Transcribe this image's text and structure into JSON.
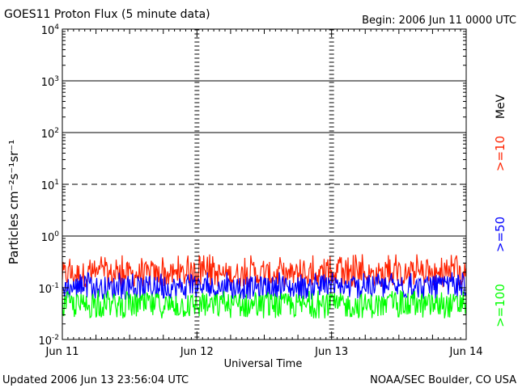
{
  "chart_data": {
    "type": "line",
    "title": "GOES11 Proton Flux (5 minute data)",
    "begin_label": "Begin: 2006 Jun 11 0000 UTC",
    "xlabel": "Universal Time",
    "ylabel": "Particles cm⁻²s⁻¹sr⁻¹",
    "y_scale": "log",
    "ylim": [
      0.01,
      10000
    ],
    "y_ticks": [
      {
        "value": 10000,
        "base": "10",
        "exp": "4"
      },
      {
        "value": 1000,
        "base": "10",
        "exp": "3"
      },
      {
        "value": 100,
        "base": "10",
        "exp": "2"
      },
      {
        "value": 10,
        "base": "10",
        "exp": "1"
      },
      {
        "value": 1,
        "base": "10",
        "exp": "0"
      },
      {
        "value": 0.1,
        "base": "10",
        "exp": "-1"
      },
      {
        "value": 0.01,
        "base": "10",
        "exp": "-2"
      }
    ],
    "x_range_hours": [
      0,
      72
    ],
    "x_ticks": [
      {
        "hour": 0,
        "label": "Jun 11"
      },
      {
        "hour": 24,
        "label": "Jun 12"
      },
      {
        "hour": 48,
        "label": "Jun 13"
      },
      {
        "hour": 72,
        "label": "Jun 14"
      }
    ],
    "threshold_lines": [
      {
        "value": 1000,
        "style": "solid"
      },
      {
        "value": 100,
        "style": "solid"
      },
      {
        "value": 10,
        "style": "dashed"
      },
      {
        "value": 1,
        "style": "solid"
      }
    ],
    "legend_unit": "MeV",
    "series": [
      {
        "name": ">=10",
        "color": "#ff2200",
        "typical_value": 0.18,
        "range": [
          0.1,
          0.45
        ]
      },
      {
        "name": ">=50",
        "color": "#0000ff",
        "typical_value": 0.1,
        "range": [
          0.05,
          0.2
        ]
      },
      {
        "name": ">=100",
        "color": "#00ff00",
        "typical_value": 0.045,
        "range": [
          0.02,
          0.09
        ]
      }
    ]
  },
  "footer": {
    "updated": "Updated 2006 Jun 13 23:56:04 UTC",
    "source": "NOAA/SEC Boulder, CO USA"
  }
}
